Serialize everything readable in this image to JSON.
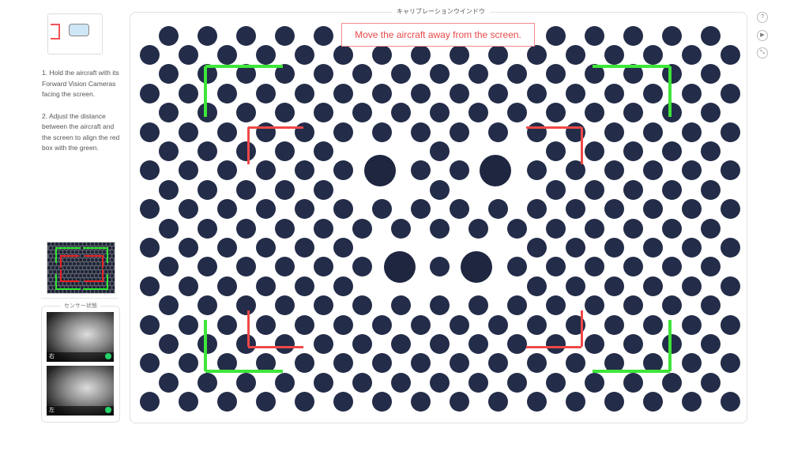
{
  "window_title": "キャリブレーションウインドウ",
  "message": "Move the aircraft away from the screen.",
  "instructions": [
    "1. Hold the aircraft with its Forward Vision Cameras facing the screen.",
    "2. Adjust the distance between the aircraft and the screen to align the red box with the green."
  ],
  "sensor_status": {
    "title": "センサー状態",
    "cameras": [
      {
        "label": "右",
        "status": "ok"
      },
      {
        "label": "左",
        "status": "ok"
      }
    ]
  },
  "side_buttons": [
    {
      "icon": "help-icon",
      "glyph": "?"
    },
    {
      "icon": "play-icon",
      "glyph": "▶"
    },
    {
      "icon": "collapse-icon",
      "glyph": "⤡"
    }
  ],
  "colors": {
    "target_box": "#3ee63a",
    "current_box": "#f04848",
    "dot": "#232c48",
    "status_ok": "#22d36a"
  }
}
